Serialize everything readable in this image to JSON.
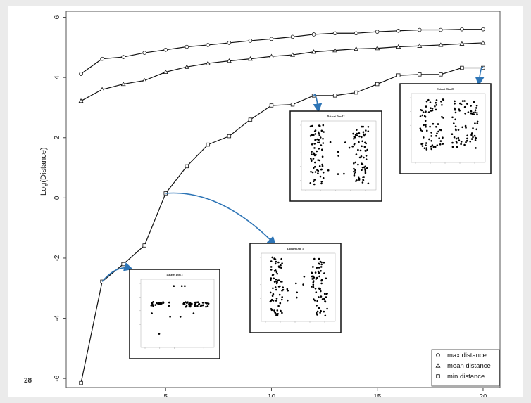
{
  "slide": {
    "page_number": "28"
  },
  "chart_data": {
    "type": "line",
    "title": "",
    "xlabel": "",
    "ylabel": "Log(Distance)",
    "xlim": [
      0.3,
      20.8
    ],
    "ylim": [
      -6.3,
      6.2
    ],
    "x_ticks": [
      5,
      10,
      15,
      20
    ],
    "y_ticks": [
      6,
      4,
      2,
      0,
      -2,
      -4,
      -6
    ],
    "x_tick_labels": [
      "5",
      "10",
      "15",
      "20"
    ],
    "y_tick_labels": [
      "6",
      "4",
      "2",
      "0",
      "-2",
      "-4",
      "-6"
    ],
    "grid": false,
    "legend_position": "bottom-right",
    "x": [
      1,
      2,
      3,
      4,
      5,
      6,
      7,
      8,
      9,
      10,
      11,
      12,
      13,
      14,
      15,
      16,
      17,
      18,
      19,
      20
    ],
    "series": [
      {
        "name": "max distance",
        "marker": "circle",
        "values": [
          4.12,
          4.62,
          4.68,
          4.82,
          4.92,
          5.02,
          5.08,
          5.15,
          5.22,
          5.28,
          5.35,
          5.43,
          5.47,
          5.47,
          5.52,
          5.55,
          5.58,
          5.58,
          5.6,
          5.6
        ]
      },
      {
        "name": "mean distance",
        "marker": "triangle",
        "values": [
          3.22,
          3.6,
          3.78,
          3.9,
          4.18,
          4.35,
          4.47,
          4.55,
          4.62,
          4.7,
          4.75,
          4.85,
          4.9,
          4.95,
          4.97,
          5.02,
          5.05,
          5.08,
          5.12,
          5.15
        ]
      },
      {
        "name": "min distance",
        "marker": "square",
        "values": [
          -6.15,
          -2.78,
          -2.2,
          -1.58,
          0.15,
          1.05,
          1.77,
          2.05,
          2.6,
          3.07,
          3.1,
          3.4,
          3.4,
          3.5,
          3.78,
          4.07,
          4.1,
          4.1,
          4.32,
          4.32
        ]
      }
    ],
    "insets": [
      {
        "title": "Dataset Dim 2",
        "points_to": {
          "x": 2,
          "y": -2.78
        }
      },
      {
        "title": "Dataset Dim 5",
        "points_to": {
          "x": 5,
          "y": 0.15
        }
      },
      {
        "title": "Dataset Dim 12",
        "points_to": {
          "x": 12,
          "y": 3.4
        }
      },
      {
        "title": "Dataset Dim 20",
        "points_to": {
          "x": 20,
          "y": 4.32
        }
      }
    ]
  },
  "colors": {
    "line": "#111111",
    "arrow": "#2e75b6",
    "frame": "#555555"
  }
}
